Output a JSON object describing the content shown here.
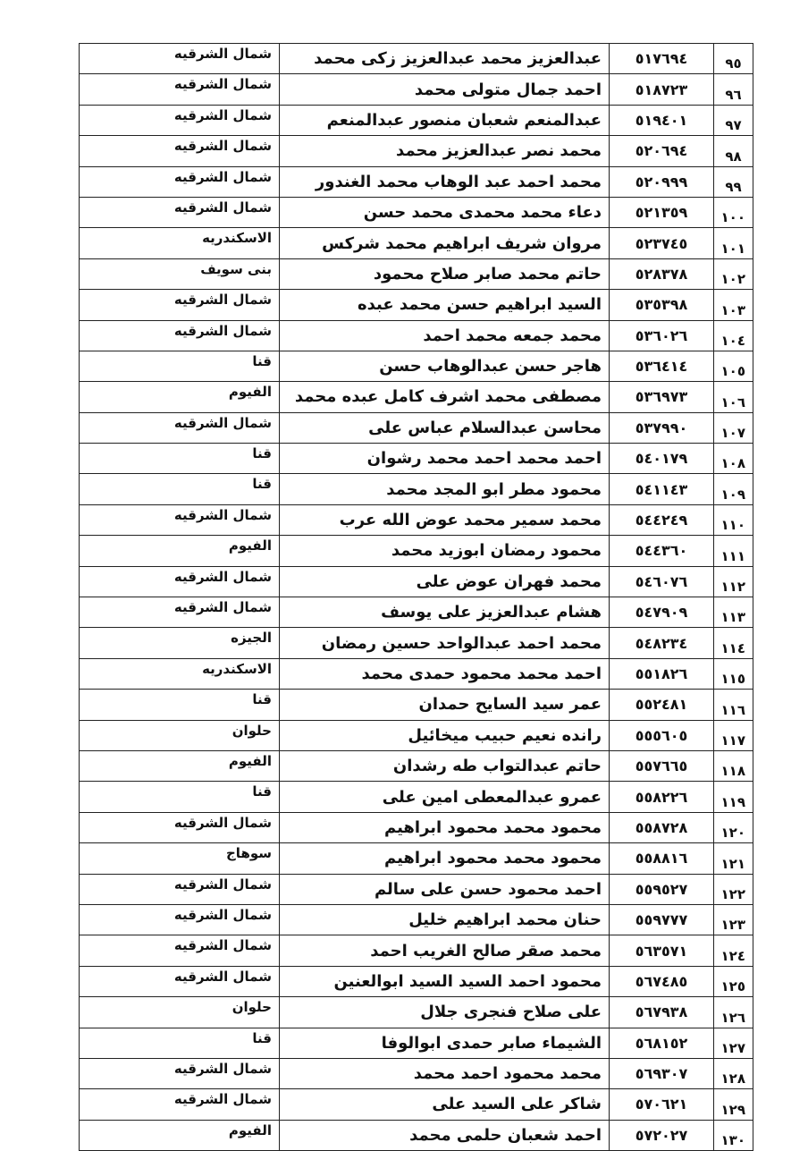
{
  "rows": [
    {
      "num": "٩٥",
      "code": "٥١٧٦٩٤",
      "name": "عبدالعزيز محمد عبدالعزيز زكى محمد",
      "region": "شمال الشرقيه"
    },
    {
      "num": "٩٦",
      "code": "٥١٨٧٢٣",
      "name": "احمد جمال متولى محمد",
      "region": "شمال الشرقيه"
    },
    {
      "num": "٩٧",
      "code": "٥١٩٤٠١",
      "name": "عبدالمنعم شعبان منصور عبدالمنعم",
      "region": "شمال الشرقيه"
    },
    {
      "num": "٩٨",
      "code": "٥٢٠٦٩٤",
      "name": "محمد نصر عبدالعزيز محمد",
      "region": "شمال الشرقيه"
    },
    {
      "num": "٩٩",
      "code": "٥٢٠٩٩٩",
      "name": "محمد احمد عبد الوهاب محمد الغندور",
      "region": "شمال الشرقيه"
    },
    {
      "num": "١٠٠",
      "code": "٥٢١٣٥٩",
      "name": "دعاء محمد محمدى محمد حسن",
      "region": "شمال الشرقيه"
    },
    {
      "num": "١٠١",
      "code": "٥٢٣٧٤٥",
      "name": "مروان شريف ابراهيم محمد شركس",
      "region": "الاسكندريه"
    },
    {
      "num": "١٠٢",
      "code": "٥٢٨٣٧٨",
      "name": "حاتم محمد صابر صلاح محمود",
      "region": "بنى سويف"
    },
    {
      "num": "١٠٣",
      "code": "٥٣٥٣٩٨",
      "name": "السيد ابراهيم حسن محمد عبده",
      "region": "شمال الشرقيه"
    },
    {
      "num": "١٠٤",
      "code": "٥٣٦٠٢٦",
      "name": "محمد جمعه محمد احمد",
      "region": "شمال الشرقيه"
    },
    {
      "num": "١٠٥",
      "code": "٥٣٦٤١٤",
      "name": "هاجر حسن عبدالوهاب حسن",
      "region": "قنا"
    },
    {
      "num": "١٠٦",
      "code": "٥٣٦٩٧٣",
      "name": "مصطفى محمد اشرف كامل عبده محمد",
      "region": "الفيوم"
    },
    {
      "num": "١٠٧",
      "code": "٥٣٧٩٩٠",
      "name": "محاسن عبدالسلام عباس على",
      "region": "شمال الشرقيه"
    },
    {
      "num": "١٠٨",
      "code": "٥٤٠١٧٩",
      "name": "احمد محمد احمد محمد رشوان",
      "region": "قنا"
    },
    {
      "num": "١٠٩",
      "code": "٥٤١١٤٣",
      "name": "محمود مطر ابو المجد محمد",
      "region": "قنا"
    },
    {
      "num": "١١٠",
      "code": "٥٤٤٢٤٩",
      "name": "محمد سمير محمد عوض الله عرب",
      "region": "شمال الشرقيه"
    },
    {
      "num": "١١١",
      "code": "٥٤٤٣٦٠",
      "name": "محمود رمضان ابوزيد محمد",
      "region": "الفيوم"
    },
    {
      "num": "١١٢",
      "code": "٥٤٦٠٧٦",
      "name": "محمد فهران عوض على",
      "region": "شمال الشرقيه"
    },
    {
      "num": "١١٣",
      "code": "٥٤٧٩٠٩",
      "name": "هشام عبدالعزيز على يوسف",
      "region": "شمال الشرقيه"
    },
    {
      "num": "١١٤",
      "code": "٥٤٨٢٣٤",
      "name": "محمد احمد عبدالواحد حسين رمضان",
      "region": "الجيزه"
    },
    {
      "num": "١١٥",
      "code": "٥٥١٨٢٦",
      "name": "احمد محمد محمود حمدى محمد",
      "region": "الاسكندريه"
    },
    {
      "num": "١١٦",
      "code": "٥٥٢٤٨١",
      "name": "عمر سيد السايح حمدان",
      "region": "قنا"
    },
    {
      "num": "١١٧",
      "code": "٥٥٥٦٠٥",
      "name": "رانده نعيم حبيب ميخائيل",
      "region": "حلوان"
    },
    {
      "num": "١١٨",
      "code": "٥٥٧٦٦٥",
      "name": "حاتم عبدالتواب طه رشدان",
      "region": "الفيوم"
    },
    {
      "num": "١١٩",
      "code": "٥٥٨٢٢٦",
      "name": "عمرو عبدالمعطى امين على",
      "region": "قنا"
    },
    {
      "num": "١٢٠",
      "code": "٥٥٨٧٢٨",
      "name": "محمود محمد محمود ابراهيم",
      "region": "شمال الشرقيه"
    },
    {
      "num": "١٢١",
      "code": "٥٥٨٨١٦",
      "name": "محمود محمد محمود ابراهيم",
      "region": "سوهاج"
    },
    {
      "num": "١٢٢",
      "code": "٥٥٩٥٢٧",
      "name": "احمد محمود حسن على سالم",
      "region": "شمال الشرقيه"
    },
    {
      "num": "١٢٣",
      "code": "٥٥٩٧٧٧",
      "name": "حنان محمد ابراهيم خليل",
      "region": "شمال الشرقيه"
    },
    {
      "num": "١٢٤",
      "code": "٥٦٣٥٧١",
      "name": "محمد صقر صالح الغريب احمد",
      "region": "شمال الشرقيه"
    },
    {
      "num": "١٢٥",
      "code": "٥٦٧٤٨٥",
      "name": "محمود احمد السيد السيد ابوالعنين",
      "region": "شمال الشرقيه"
    },
    {
      "num": "١٢٦",
      "code": "٥٦٧٩٣٨",
      "name": "على صلاح فنجرى جلال",
      "region": "حلوان"
    },
    {
      "num": "١٢٧",
      "code": "٥٦٨١٥٢",
      "name": "الشيماء صابر حمدى ابوالوفا",
      "region": "قنا"
    },
    {
      "num": "١٢٨",
      "code": "٥٦٩٣٠٧",
      "name": "محمد محمود احمد محمد",
      "region": "شمال الشرقيه"
    },
    {
      "num": "١٢٩",
      "code": "٥٧٠٦٢١",
      "name": "شاكر على السيد على",
      "region": "شمال الشرقيه"
    },
    {
      "num": "١٣٠",
      "code": "٥٧٢٠٢٧",
      "name": "احمد شعبان حلمى محمد",
      "region": "الفيوم"
    }
  ]
}
